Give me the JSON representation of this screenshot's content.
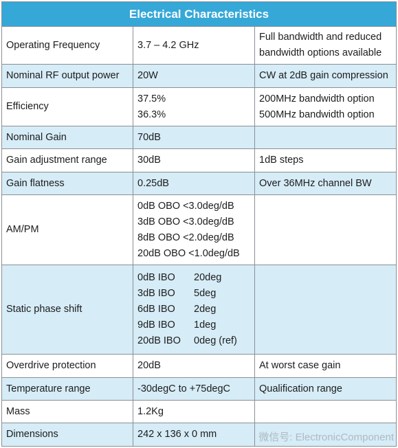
{
  "title": "Electrical Characteristics",
  "rows": [
    {
      "param": "Operating Frequency",
      "value": [
        "3.7 – 4.2 GHz"
      ],
      "note": [
        "Full bandwidth and reduced",
        "bandwidth options available"
      ]
    },
    {
      "param": "Nominal RF output power",
      "value": [
        "20W"
      ],
      "note": [
        "CW at 2dB gain compression"
      ]
    },
    {
      "param": "Efficiency",
      "value": [
        "37.5%",
        "36.3%"
      ],
      "note": [
        "200MHz bandwidth option",
        "500MHz bandwidth option"
      ]
    },
    {
      "param": "Nominal Gain",
      "value": [
        "70dB"
      ],
      "note": []
    },
    {
      "param": "Gain adjustment range",
      "value": [
        "30dB"
      ],
      "note": [
        "1dB steps"
      ]
    },
    {
      "param": "Gain flatness",
      "value": [
        "0.25dB"
      ],
      "note": [
        "Over 36MHz channel BW"
      ]
    },
    {
      "param": "AM/PM",
      "value": [
        "0dB OBO <3.0deg/dB",
        "3dB OBO <3.0deg/dB",
        "8dB OBO <2.0deg/dB",
        "20dB OBO <1.0deg/dB"
      ],
      "note": []
    },
    {
      "param": "Static phase shift",
      "value_pairs": [
        [
          "0dB IBO",
          "20deg"
        ],
        [
          "3dB IBO",
          "5deg"
        ],
        [
          "6dB IBO",
          "2deg"
        ],
        [
          "9dB IBO",
          "1deg"
        ],
        [
          "20dB IBO",
          "0deg (ref)"
        ]
      ],
      "note": []
    },
    {
      "param": "Overdrive protection",
      "value": [
        "20dB"
      ],
      "note": [
        "At worst case gain"
      ]
    },
    {
      "param": "Temperature range",
      "value": [
        "-30degC to +75degC"
      ],
      "note": [
        "Qualification range"
      ]
    },
    {
      "param": "Mass",
      "value": [
        "1.2Kg"
      ],
      "note": []
    },
    {
      "param": "Dimensions",
      "value": [
        "242 x 136 x 0 mm"
      ],
      "note": []
    }
  ],
  "watermark": "微信号: ElectronicComponent"
}
